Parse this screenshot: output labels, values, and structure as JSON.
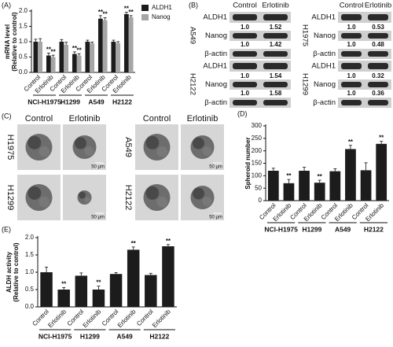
{
  "chart_data": [
    {
      "type": "bar",
      "panel": "(A)",
      "ylabel": "mRNA level",
      "ylabel_sub": "(Relative to control)",
      "categories": [
        "Control",
        "Erlotinib",
        "Control",
        "Erlotinib",
        "Control",
        "Erlotinib",
        "Control",
        "Erlotinib"
      ],
      "groups": [
        "NCI-H1975",
        "H1299",
        "A549",
        "H2122"
      ],
      "series": [
        {
          "name": "ALDH1",
          "color": "#1c1c1c",
          "values": [
            1.0,
            0.55,
            1.0,
            0.6,
            1.0,
            1.75,
            1.0,
            1.9
          ],
          "errors": [
            0.08,
            0.08,
            0.07,
            0.07,
            0.05,
            0.1,
            0.05,
            0.06
          ],
          "significance": [
            null,
            "**",
            null,
            "**",
            null,
            "**",
            null,
            "**"
          ]
        },
        {
          "name": "Nanog",
          "color": "#a6a6a6",
          "values": [
            1.0,
            0.5,
            0.9,
            0.55,
            0.95,
            1.7,
            0.95,
            1.8
          ],
          "errors": [
            0.1,
            0.06,
            0.08,
            0.06,
            0.04,
            0.08,
            0.05,
            0.05
          ],
          "significance": [
            null,
            "**",
            null,
            "**",
            null,
            "**",
            null,
            "**"
          ]
        }
      ],
      "ylim": [
        0,
        2
      ],
      "yticks": [
        {
          "value": 0,
          "label": "0.0"
        },
        {
          "value": 0.5,
          "label": "0.5"
        },
        {
          "value": 1,
          "label": "1.0"
        },
        {
          "value": 1.5,
          "label": "1.5"
        },
        {
          "value": 2,
          "label": "2.0"
        }
      ],
      "legend": "right"
    },
    {
      "type": "bar",
      "panel": "(D)",
      "ylabel": "Spheroid number",
      "categories": [
        "Control",
        "Erlotinib",
        "Control",
        "Erlotinib",
        "Control",
        "Erlotinib",
        "Control",
        "Erlotinib"
      ],
      "groups": [
        "NCI-H1975",
        "H1299",
        "A549",
        "H2122"
      ],
      "color": "#1c1c1c",
      "values": [
        120,
        70,
        120,
        72,
        118,
        207,
        122,
        228
      ],
      "errors": [
        10,
        15,
        14,
        10,
        10,
        15,
        30,
        10
      ],
      "significance": [
        null,
        "**",
        null,
        "**",
        null,
        "**",
        null,
        "**"
      ],
      "ylim": [
        0,
        300
      ],
      "yticks": [
        0,
        50,
        100,
        150,
        200,
        250,
        300
      ]
    },
    {
      "type": "bar",
      "panel": "(E)",
      "ylabel": "ALDH activity",
      "ylabel_sub": "(Relative to control)",
      "categories": [
        "Control",
        "Erlotinib",
        "Control",
        "Erlotinib",
        "Control",
        "Erlotinib",
        "Control",
        "Erlotinib"
      ],
      "groups": [
        "NCI-H1975",
        "H1299",
        "A549",
        "H2122"
      ],
      "color": "#1c1c1c",
      "values": [
        1.0,
        0.5,
        0.9,
        0.5,
        0.95,
        1.65,
        0.92,
        1.75
      ],
      "errors": [
        0.15,
        0.06,
        0.08,
        0.1,
        0.04,
        0.08,
        0.05,
        0.05
      ],
      "significance": [
        null,
        "**",
        null,
        "**",
        null,
        "**",
        null,
        "**"
      ],
      "ylim": [
        0,
        2
      ],
      "yticks": [
        {
          "value": 0,
          "label": "0.0"
        },
        {
          "value": 0.5,
          "label": "0.5"
        },
        {
          "value": 1,
          "label": "1.0"
        },
        {
          "value": 1.5,
          "label": "1.5"
        },
        {
          "value": 2,
          "label": "2.0"
        }
      ]
    }
  ],
  "blots": {
    "panel": "(B)",
    "columns": [
      "Control",
      "Erlotinib"
    ],
    "blocks": [
      {
        "cell": "A549",
        "rows": [
          {
            "name": "ALDH1",
            "values": [
              "1.0",
              "1.52"
            ]
          },
          {
            "name": "Nanog",
            "values": [
              "1.0",
              "1.42"
            ]
          },
          {
            "name": "β-actin"
          }
        ]
      },
      {
        "cell": "H1975",
        "rows": [
          {
            "name": "ALDH1",
            "values": [
              "1.0",
              "0.53"
            ]
          },
          {
            "name": "Nanog",
            "values": [
              "1.0",
              "0.48"
            ]
          },
          {
            "name": "β-actin"
          }
        ]
      },
      {
        "cell": "H2122",
        "rows": [
          {
            "name": "ALDH1",
            "values": [
              "1.0",
              "1.54"
            ]
          },
          {
            "name": "Nanog",
            "values": [
              "1.0",
              "1.58"
            ]
          },
          {
            "name": "β-actin"
          }
        ]
      },
      {
        "cell": "H1299",
        "rows": [
          {
            "name": "ALDH1",
            "values": [
              "1.0",
              "0.32"
            ]
          },
          {
            "name": "Nanog",
            "values": [
              "1.0",
              "0.36"
            ]
          },
          {
            "name": "β-actin"
          }
        ]
      }
    ]
  },
  "images": {
    "panel": "(C)",
    "columns": [
      "Control",
      "Erlotinib"
    ],
    "cells": [
      "H1975",
      "H1299",
      "A549",
      "H2122"
    ],
    "scale": "50 μm"
  }
}
